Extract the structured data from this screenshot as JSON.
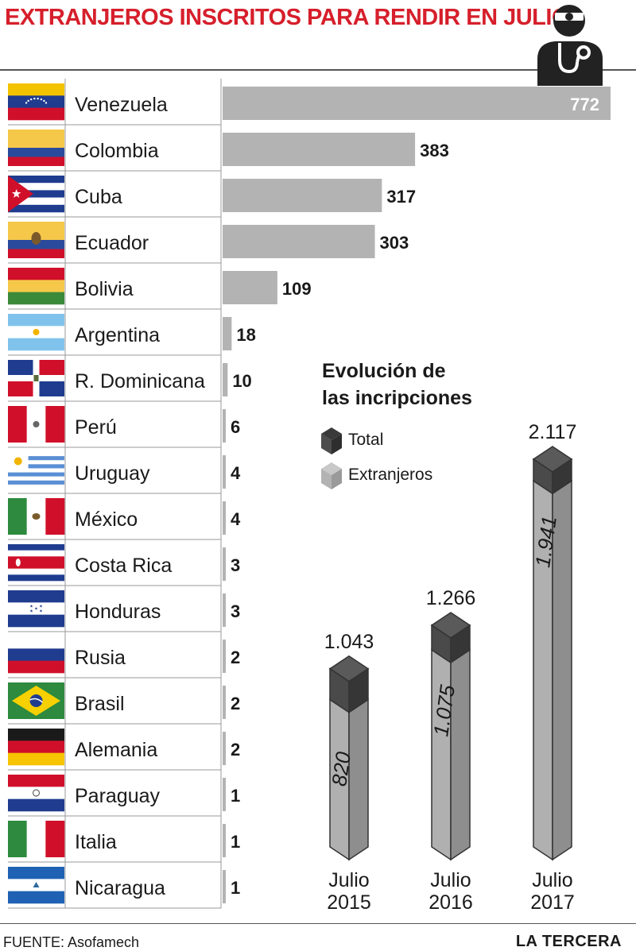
{
  "header": {
    "title": "EXTRANJEROS  INSCRITOS PARA RENDIR EN JULIO"
  },
  "chart_data": [
    {
      "type": "bar",
      "orientation": "horizontal",
      "title": "EXTRANJEROS  INSCRITOS PARA RENDIR EN JULIO",
      "categories": [
        "Venezuela",
        "Colombia",
        "Cuba",
        "Ecuador",
        "Bolivia",
        "Argentina",
        "R. Dominicana",
        "Perú",
        "Uruguay",
        "México",
        "Costa Rica",
        "Honduras",
        "Rusia",
        "Brasil",
        "Alemania",
        "Paraguay",
        "Italia",
        "Nicaragua"
      ],
      "values": [
        772,
        383,
        317,
        303,
        109,
        18,
        10,
        6,
        4,
        4,
        3,
        3,
        2,
        2,
        2,
        1,
        1,
        1
      ],
      "flags": [
        "venezuela-flag-icon",
        "colombia-flag-icon",
        "cuba-flag-icon",
        "ecuador-flag-icon",
        "bolivia-flag-icon",
        "argentina-flag-icon",
        "dominican-republic-flag-icon",
        "peru-flag-icon",
        "uruguay-flag-icon",
        "mexico-flag-icon",
        "costa-rica-flag-icon",
        "honduras-flag-icon",
        "russia-flag-icon",
        "brazil-flag-icon",
        "germany-flag-icon",
        "paraguay-flag-icon",
        "italy-flag-icon",
        "nicaragua-flag-icon"
      ],
      "bar_color": "#b3b3b3",
      "xlim": [
        0,
        772
      ]
    },
    {
      "type": "bar",
      "title": "Evolución de las incripciones",
      "categories": [
        "Julio 2015",
        "Julio 2016",
        "Julio 2017"
      ],
      "category_lines": [
        [
          "Julio",
          "2015"
        ],
        [
          "Julio",
          "2016"
        ],
        [
          "Julio",
          "2017"
        ]
      ],
      "series": [
        {
          "name": "Total",
          "values": [
            1043,
            1266,
            2117
          ],
          "labels": [
            "1.043",
            "1.266",
            "2.117"
          ],
          "color": "#4d4d4d"
        },
        {
          "name": "Extranjeros",
          "values": [
            820,
            1075,
            1941
          ],
          "labels": [
            "820",
            "1.075",
            "1.941"
          ],
          "color": "#b3b3b3"
        }
      ],
      "ylim": [
        0,
        2117
      ]
    }
  ],
  "evolution": {
    "title_line1": "Evolución de",
    "title_line2": "las incripciones",
    "legend_total": "Total",
    "legend_extranjeros": "Extranjeros"
  },
  "footer": {
    "source": "FUENTE: Asofamech",
    "brand": "LA TERCERA"
  },
  "icons": {
    "header": "doctor-stethoscope-icon"
  }
}
